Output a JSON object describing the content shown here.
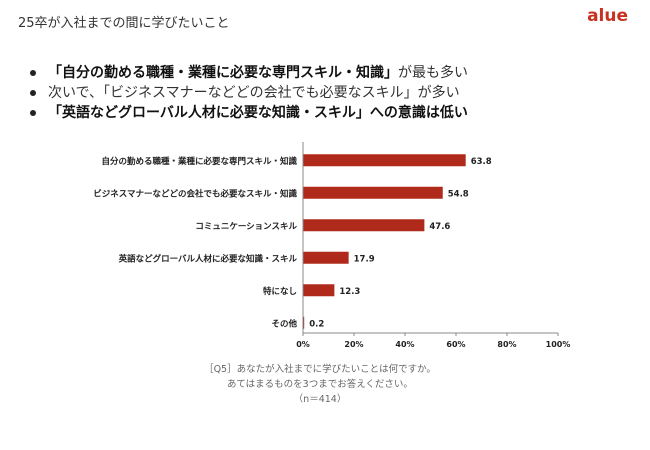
{
  "header": {
    "title": "25卒が入社までの間に学びたいこと",
    "brand": "alue"
  },
  "bullets": [
    {
      "strong": "「自分の勤める職種・業種に必要な専門スキル・知識」",
      "normal": "が最も多い",
      "emphasis": true
    },
    {
      "strong": "",
      "normal": "次いで、「ビジネスマナーなどどの会社でも必要なスキル」が多い",
      "emphasis": false
    },
    {
      "strong": "「英語などグローバル人材に必要な知識・スキル」への意識は低い",
      "normal": "",
      "emphasis": true
    }
  ],
  "chart_data": {
    "type": "bar",
    "orientation": "horizontal",
    "categories": [
      "自分の勤める職種・業種に必要な専門スキル・知識",
      "ビジネスマナーなどどの会社でも必要なスキル・知識",
      "コミュニケーションスキル",
      "英語などグローバル人材に必要な知識・スキル",
      "特になし",
      "その他"
    ],
    "values": [
      63.8,
      54.8,
      47.6,
      17.9,
      12.3,
      0.2
    ],
    "value_labels": [
      "63.8",
      "54.8",
      "47.6",
      "17.9",
      "12.3",
      "0.2"
    ],
    "xlim": [
      0,
      100
    ],
    "xticks": [
      "0%",
      "20%",
      "40%",
      "60%",
      "80%",
      "100%"
    ],
    "bar_color": "#b02a1c",
    "grid": false,
    "legend": "none"
  },
  "footnote": {
    "question": "［Q5］あなたが入社までに学びたいことは何ですか。",
    "instruction": "あてはまるものを3つまでお答えください。",
    "sample": "（n＝414）"
  }
}
